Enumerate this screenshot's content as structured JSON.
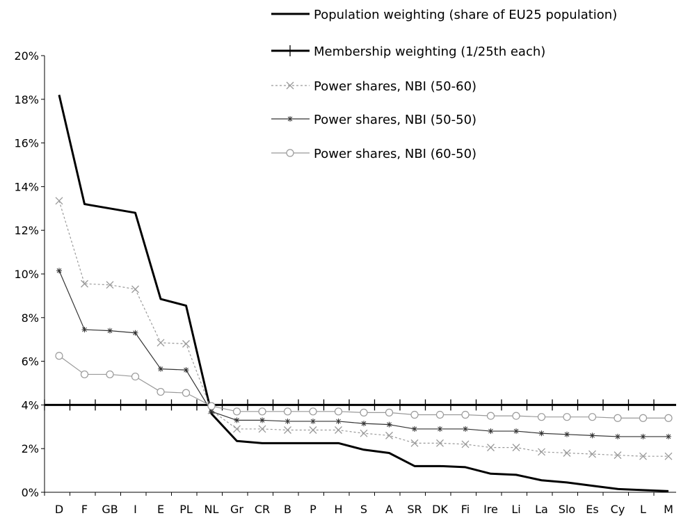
{
  "chart_data": {
    "type": "line",
    "title": "",
    "xlabel": "",
    "ylabel": "",
    "ylim": [
      0,
      20
    ],
    "y_ticks": [
      "0%",
      "2%",
      "4%",
      "6%",
      "8%",
      "10%",
      "12%",
      "14%",
      "16%",
      "18%",
      "20%"
    ],
    "grid": false,
    "legend_position": "top-right",
    "categories": [
      "D",
      "F",
      "GB",
      "I",
      "E",
      "PL",
      "NL",
      "Gr",
      "CR",
      "B",
      "P",
      "H",
      "S",
      "A",
      "SR",
      "DK",
      "Fi",
      "Ire",
      "Li",
      "La",
      "Slo",
      "Es",
      "Cy",
      "L",
      "M"
    ],
    "series": [
      {
        "name": "Population weighting (share of EU25 population)",
        "marker": "none",
        "dash": "solid",
        "color": "#000000",
        "values": [
          18.2,
          13.2,
          13.0,
          12.8,
          8.85,
          8.55,
          3.6,
          2.35,
          2.25,
          2.25,
          2.25,
          2.25,
          1.95,
          1.8,
          1.2,
          1.2,
          1.15,
          0.85,
          0.8,
          0.55,
          0.45,
          0.3,
          0.15,
          0.1,
          0.05
        ]
      },
      {
        "name": "Membership weighting (1/25th each)",
        "marker": "plus",
        "dash": "solid",
        "color": "#000000",
        "values": [
          4,
          4,
          4,
          4,
          4,
          4,
          4,
          4,
          4,
          4,
          4,
          4,
          4,
          4,
          4,
          4,
          4,
          4,
          4,
          4,
          4,
          4,
          4,
          4,
          4
        ]
      },
      {
        "name": "Power shares, NBI (50-60)",
        "marker": "x",
        "dash": "dotted",
        "color": "#999999",
        "values": [
          13.35,
          9.55,
          9.5,
          9.3,
          6.85,
          6.8,
          3.75,
          2.9,
          2.9,
          2.85,
          2.85,
          2.85,
          2.7,
          2.6,
          2.25,
          2.25,
          2.2,
          2.05,
          2.05,
          1.85,
          1.8,
          1.75,
          1.7,
          1.65,
          1.65
        ]
      },
      {
        "name": "Power shares, NBI (50-50)",
        "marker": "star",
        "dash": "solid",
        "color": "#333333",
        "values": [
          10.15,
          7.45,
          7.4,
          7.3,
          5.65,
          5.6,
          3.7,
          3.3,
          3.3,
          3.25,
          3.25,
          3.25,
          3.15,
          3.1,
          2.9,
          2.9,
          2.9,
          2.8,
          2.8,
          2.7,
          2.65,
          2.6,
          2.55,
          2.55,
          2.55
        ]
      },
      {
        "name": "Power shares, NBI (60-50)",
        "marker": "circle",
        "dash": "solid",
        "color": "#999999",
        "values": [
          6.25,
          5.4,
          5.4,
          5.3,
          4.6,
          4.55,
          3.95,
          3.7,
          3.7,
          3.7,
          3.7,
          3.7,
          3.65,
          3.65,
          3.55,
          3.55,
          3.55,
          3.5,
          3.5,
          3.45,
          3.45,
          3.45,
          3.4,
          3.4,
          3.4
        ]
      }
    ]
  }
}
